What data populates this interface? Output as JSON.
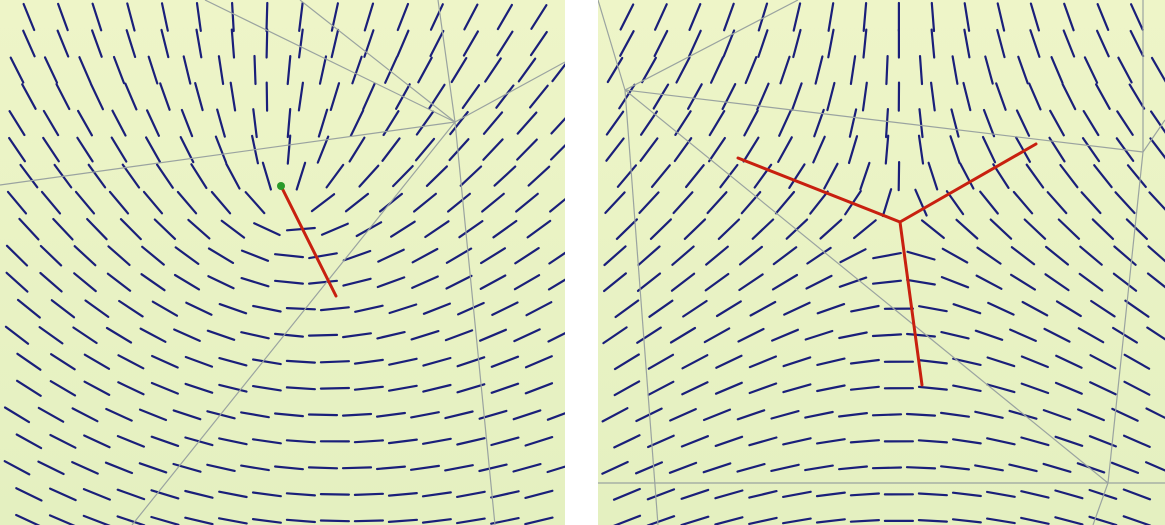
{
  "figure": {
    "panels": [
      {
        "id": "left",
        "description_key": "plus-half-defect",
        "defect_charge": 0.5,
        "defect_branches": 1
      },
      {
        "id": "right",
        "description_key": "minus-half-defect",
        "defect_charge": -0.5,
        "defect_branches": 3
      }
    ]
  },
  "colors": {
    "background_gradient_top": "#eef5c8",
    "background_gradient_bottom": "#e4f0c0",
    "director_lines": "#1a1f7a",
    "mesh_edges": "#9aa3a0",
    "defect_lines": "#c8200f",
    "defect_core": "#2a9a2a",
    "gap": "#ffffff"
  },
  "icons": {
    "defect_core_marker": "dot",
    "director": "line-segment"
  }
}
